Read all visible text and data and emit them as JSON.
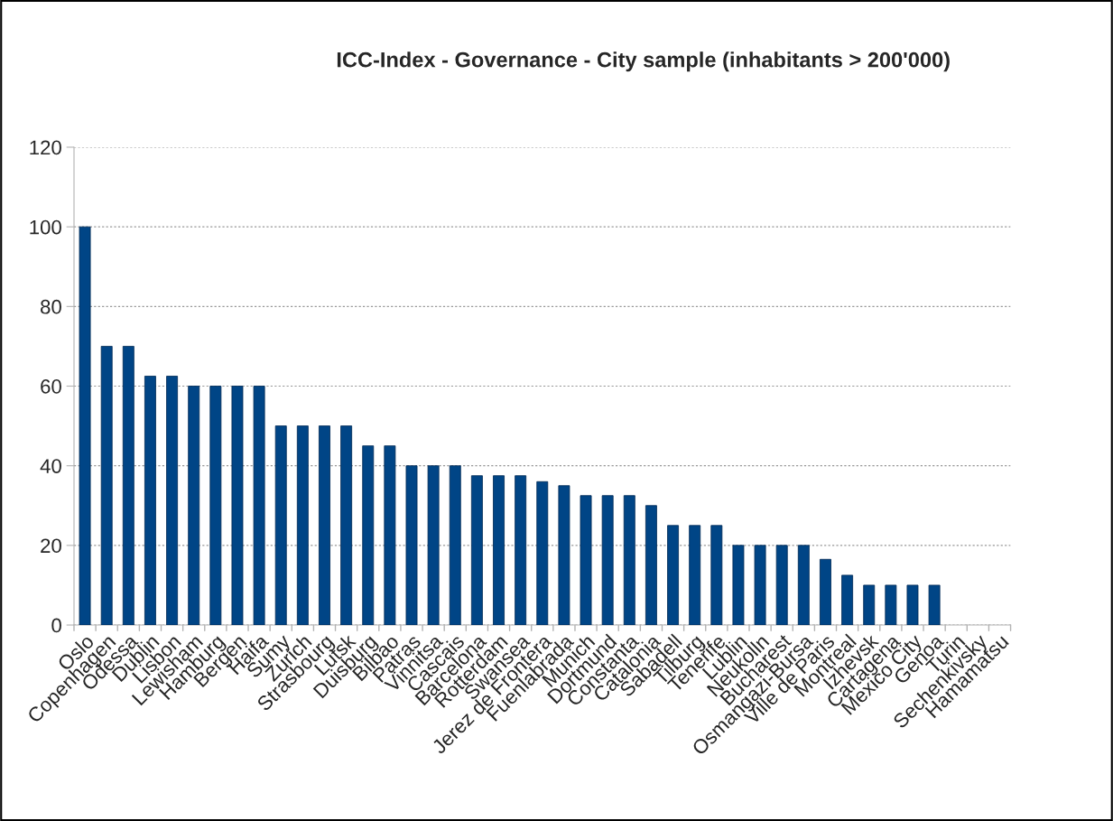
{
  "chart_data": {
    "type": "bar",
    "title": "ICC-Index - Governance - City sample (inhabitants > 200'000)",
    "categories": [
      "Oslo",
      "Copenhagen",
      "Odessa",
      "Dublin",
      "Lisbon",
      "Lewisham",
      "Hamburg",
      "Bergen",
      "Haifa",
      "Sumy",
      "Zurich",
      "Strasbourg",
      "Lutsk",
      "Duisburg",
      "Bilbao",
      "Patras",
      "Vinnitsa",
      "Cascais",
      "Barcelona",
      "Rotterdam",
      "Swansea",
      "Jerez de Frontera",
      "Fuenlabrada",
      "Munich",
      "Dortmund",
      "Constanta",
      "Catalonia",
      "Sabadell",
      "Tilburg",
      "Tenerife",
      "Lublin",
      "Neukolln",
      "Bucharest",
      "Osmangazi-Bursa",
      "Ville de Paris",
      "Montreal",
      "Izhevsk",
      "Cartagena",
      "Mexico City",
      "Genoa",
      "Turin",
      "Sechenkivsky",
      "Hamamatsu"
    ],
    "values": [
      100,
      70,
      70,
      62.5,
      62.5,
      60,
      60,
      60,
      60,
      50,
      50,
      50,
      50,
      45,
      45,
      40,
      40,
      40,
      37.5,
      37.5,
      37.5,
      36,
      35,
      32.5,
      32.5,
      32.5,
      30,
      25,
      25,
      25,
      20,
      20,
      20,
      20,
      16.5,
      12.5,
      10,
      10,
      10,
      10,
      null,
      null,
      null
    ],
    "color": "#004586",
    "ylim": [
      0,
      120
    ],
    "yticks": [
      0,
      20,
      40,
      60,
      80,
      100,
      120
    ],
    "grid": "y"
  }
}
